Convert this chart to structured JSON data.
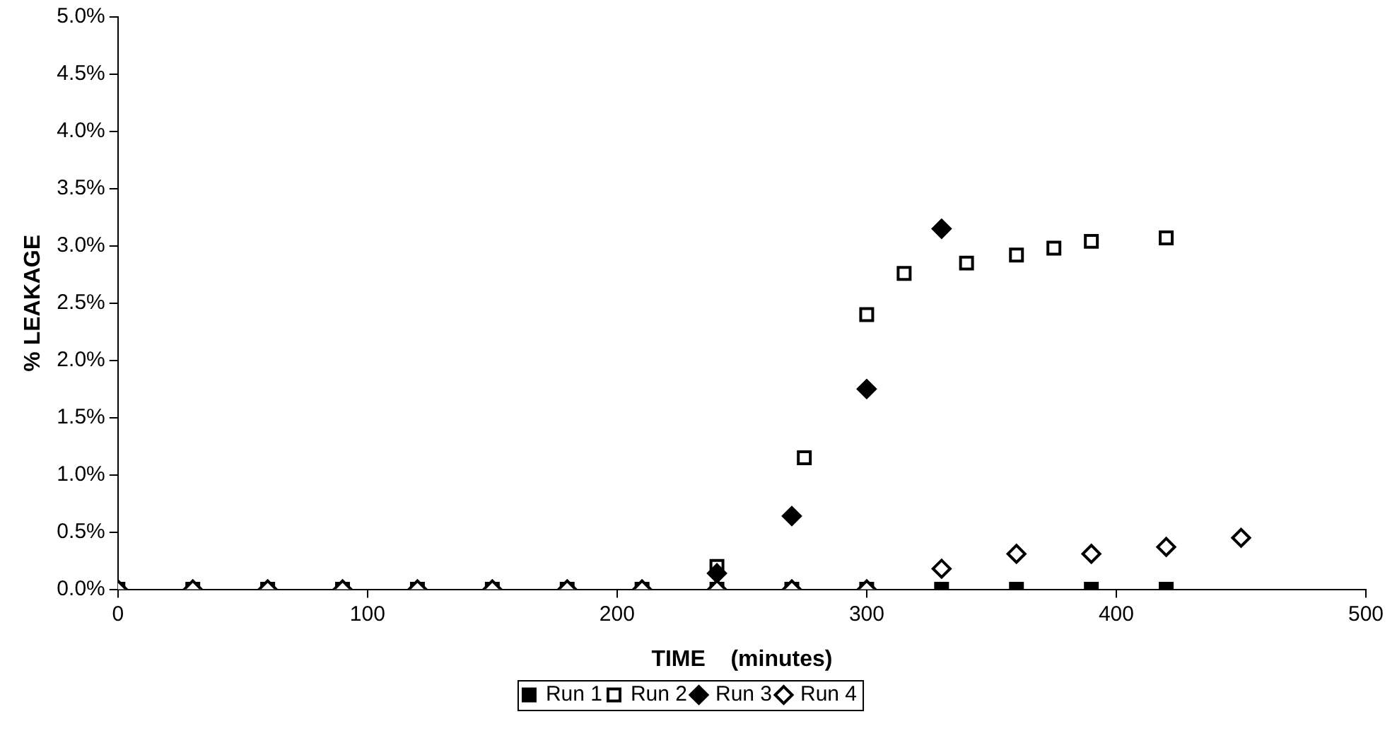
{
  "chart_data": {
    "type": "scatter",
    "xlabel": "TIME    (minutes)",
    "ylabel": "% LEAKAGE",
    "xlim": [
      0,
      500
    ],
    "xticks": [
      0,
      100,
      200,
      300,
      400,
      500
    ],
    "ylim": [
      0,
      5
    ],
    "yticks": [
      {
        "value": 0,
        "label": "0.0%"
      },
      {
        "value": 0.5,
        "label": "0.5%"
      },
      {
        "value": 1,
        "label": "1.0%"
      },
      {
        "value": 1.5,
        "label": "1.5%"
      },
      {
        "value": 2,
        "label": "2.0%"
      },
      {
        "value": 2.5,
        "label": "2.5%"
      },
      {
        "value": 3,
        "label": "3.0%"
      },
      {
        "value": 3.5,
        "label": "3.5%"
      },
      {
        "value": 4,
        "label": "4.0%"
      },
      {
        "value": 4.5,
        "label": "4.5%"
      },
      {
        "value": 5,
        "label": "5.0%"
      }
    ],
    "grid": false,
    "legend": "bottom",
    "series": [
      {
        "name": "Run 1",
        "color": "#000000",
        "marker": "square",
        "x": [
          0,
          30,
          60,
          90,
          120,
          150,
          180,
          210,
          240,
          270,
          300,
          330,
          360,
          390,
          420
        ],
        "values": [
          0,
          0,
          0,
          0,
          0,
          0,
          0,
          0,
          0,
          0,
          0,
          0,
          0,
          0,
          0
        ]
      },
      {
        "name": "Run 2",
        "color": "#000000",
        "marker": "square-open",
        "x": [
          240,
          275,
          300,
          315,
          340,
          360,
          375,
          390,
          420
        ],
        "values": [
          0.2,
          1.15,
          2.4,
          2.76,
          2.85,
          2.92,
          2.98,
          3.04,
          3.07
        ]
      },
      {
        "name": "Run 3",
        "color": "#000000",
        "marker": "diamond",
        "x": [
          240,
          270,
          300,
          330
        ],
        "values": [
          0.14,
          0.64,
          1.75,
          3.15
        ]
      },
      {
        "name": "Run 4",
        "color": "#000000",
        "marker": "diamond-open",
        "x": [
          0,
          30,
          60,
          90,
          120,
          150,
          180,
          210,
          240,
          270,
          300,
          330,
          360,
          390,
          420,
          450
        ],
        "values": [
          0,
          0,
          0,
          0,
          0,
          0,
          0,
          0,
          0,
          0,
          0,
          0.18,
          0.31,
          0.31,
          0.37,
          0.45
        ]
      }
    ]
  }
}
